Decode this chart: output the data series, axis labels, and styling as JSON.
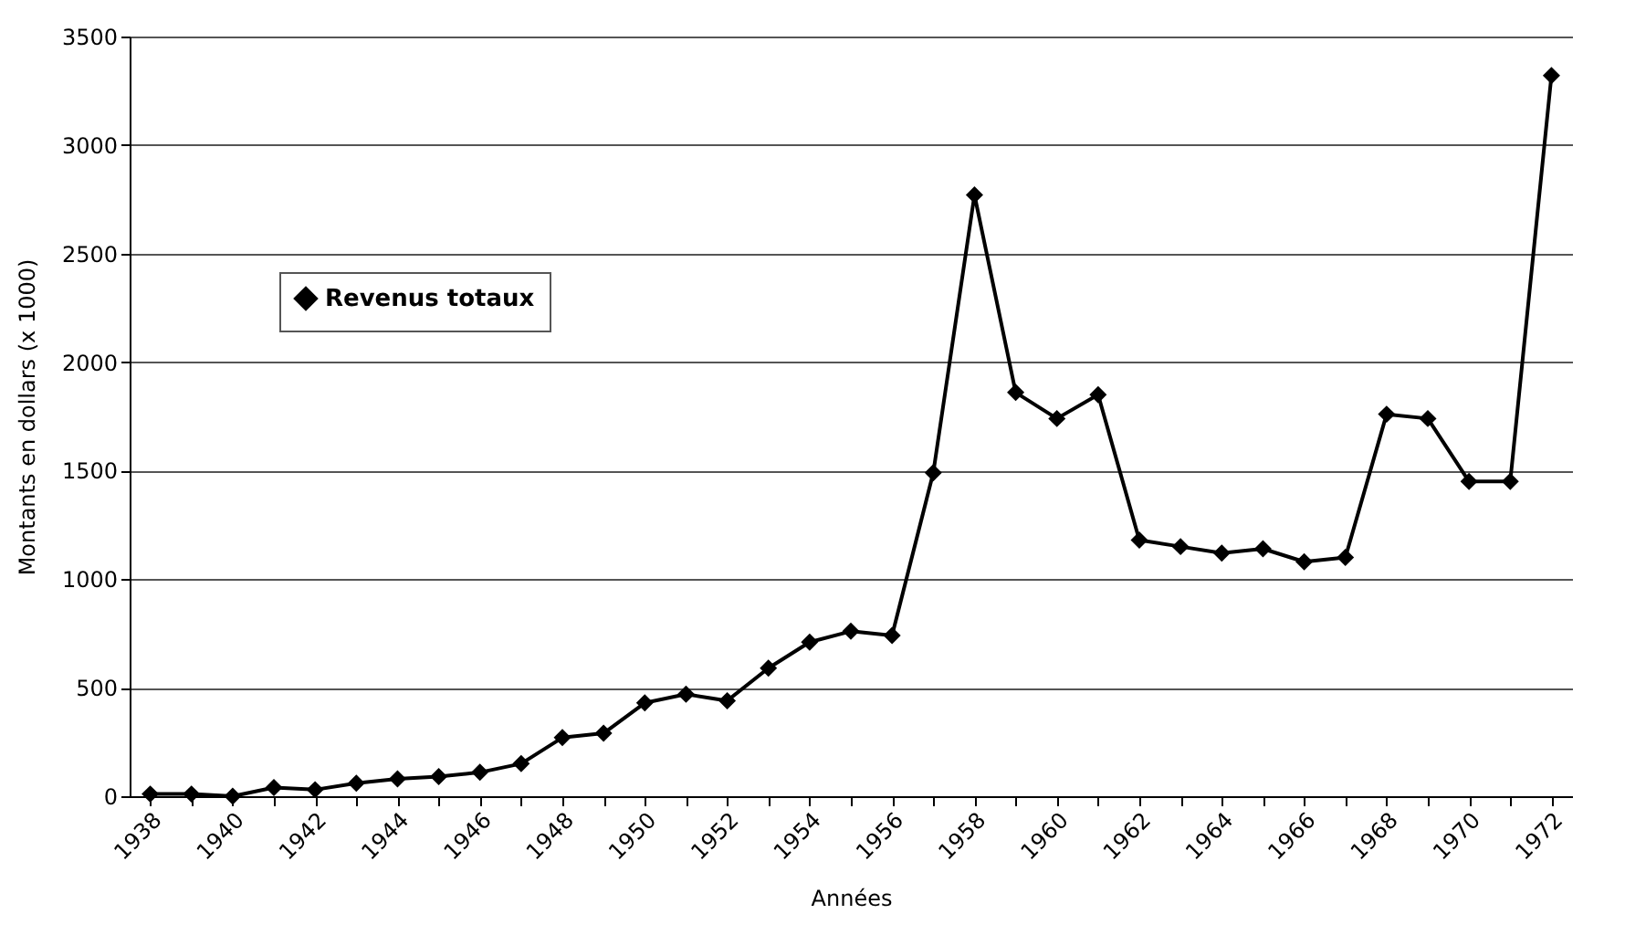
{
  "chart_data": {
    "type": "line",
    "xlabel": "Années",
    "ylabel": "Montants en dollars (x 1000)",
    "categories": [
      "1938",
      null,
      "1940",
      null,
      "1942",
      null,
      "1944",
      null,
      "1946",
      null,
      "1948",
      null,
      "1950",
      null,
      "1952",
      null,
      "1954",
      null,
      "1956",
      null,
      "1958",
      null,
      "1960",
      null,
      "1962",
      null,
      "1964",
      null,
      "1966",
      null,
      "1968",
      null,
      "1970",
      null,
      "1972"
    ],
    "series": [
      {
        "name": "Revenus totaux",
        "color": "#000000",
        "values": [
          10,
          10,
          0,
          40,
          30,
          60,
          80,
          90,
          110,
          150,
          270,
          290,
          430,
          470,
          440,
          590,
          710,
          760,
          740,
          1490,
          2770,
          1860,
          1740,
          1850,
          1180,
          1150,
          1120,
          1140,
          1080,
          1100,
          1760,
          1740,
          1450,
          1450,
          3320
        ]
      }
    ],
    "ylim": [
      0,
      3500
    ],
    "yticks": [
      0,
      500,
      1000,
      1500,
      2000,
      2500,
      3000,
      3500
    ],
    "grid": "y",
    "legend": "top left",
    "marker": "diamond",
    "line_style": "solid"
  }
}
